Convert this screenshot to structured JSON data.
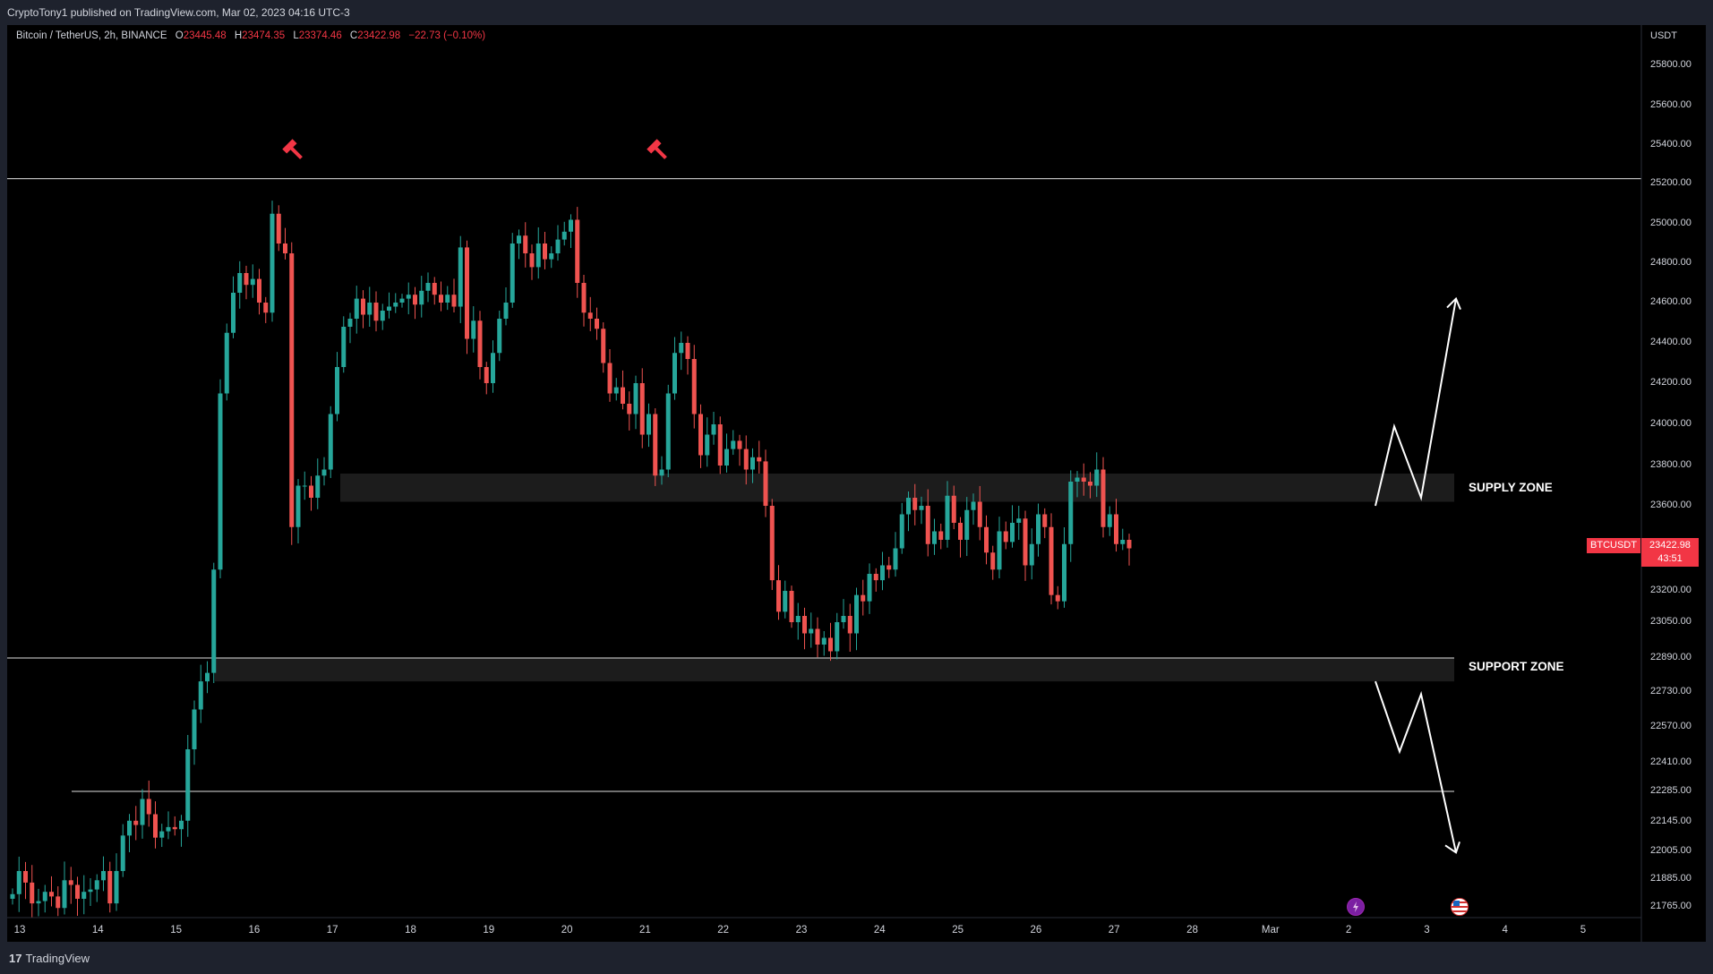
{
  "header": {
    "published": "CryptoTony1 published on TradingView.com, Mar 02, 2023 04:16 UTC-3"
  },
  "legend": {
    "title": "Bitcoin / TetherUS, 2h, BINANCE",
    "open_label": "O",
    "open": "23445.48",
    "high_label": "H",
    "high": "23474.35",
    "low_label": "L",
    "low": "23374.46",
    "close_label": "C",
    "close": "23422.98",
    "change": "−22.73 (−0.10%)"
  },
  "price_axis": {
    "currency": "USDT",
    "ticks": [
      "25800.00",
      "25600.00",
      "25400.00",
      "25200.00",
      "25000.00",
      "24800.00",
      "24600.00",
      "24400.00",
      "24200.00",
      "24000.00",
      "23800.00",
      "23600.00",
      "23200.00",
      "23050.00",
      "22890.00",
      "22730.00",
      "22570.00",
      "22410.00",
      "22285.00",
      "22145.00",
      "22005.00",
      "21885.00",
      "21765.00"
    ]
  },
  "time_axis": {
    "labels": [
      "13",
      "14",
      "15",
      "16",
      "17",
      "18",
      "19",
      "20",
      "21",
      "22",
      "23",
      "24",
      "25",
      "26",
      "27",
      "28",
      "Mar",
      "2",
      "3",
      "4",
      "5"
    ]
  },
  "current_price": {
    "symbol": "BTCUSDT",
    "price": "23422.98",
    "countdown": "43:51"
  },
  "annotations": {
    "supply_zone": "SUPPLY ZONE",
    "support_zone": "SUPPORT ZONE"
  },
  "footer": {
    "brand": "TradingView"
  },
  "colors": {
    "up": "#26a69a",
    "down": "#ef5350",
    "background": "#000000",
    "frame": "#1e222d",
    "zone": "#1c1c1c",
    "badge": "#f23645"
  },
  "icons": {
    "hammer": "hammer-icon",
    "lightning_event": "lightning-event-icon",
    "flag_event": "us-flag-event-icon",
    "logo": "tradingview-logo-icon"
  },
  "chart_data": {
    "type": "candlestick",
    "symbol": "Bitcoin / TetherUS",
    "interval": "2h",
    "exchange": "BINANCE",
    "x_range": [
      "13",
      "5"
    ],
    "y_range": [
      21765,
      25900
    ],
    "horizontal_levels": [
      25225,
      22890,
      22285
    ],
    "zones": [
      {
        "name": "SUPPLY ZONE",
        "from": 23620,
        "to": 23760
      },
      {
        "name": "SUPPORT ZONE",
        "from": 22780,
        "to": 22890
      }
    ],
    "projection_up": [
      23600,
      23990,
      23640,
      24620
    ],
    "projection_down": [
      22780,
      22460,
      22720,
      22000
    ],
    "closes": [
      21820,
      21920,
      21870,
      21780,
      21790,
      21830,
      21810,
      21760,
      21880,
      21860,
      21800,
      21830,
      21840,
      21880,
      21920,
      21780,
      21920,
      22080,
      22150,
      22130,
      22250,
      22180,
      22070,
      22100,
      22120,
      22110,
      22150,
      22470,
      22650,
      22780,
      22820,
      23300,
      24150,
      24450,
      24650,
      24750,
      24690,
      24720,
      24600,
      24550,
      25050,
      24900,
      24850,
      23500,
      23700,
      23700,
      23640,
      23750,
      23780,
      24050,
      24280,
      24480,
      24520,
      24620,
      24540,
      24600,
      24510,
      24560,
      24580,
      24600,
      24620,
      24640,
      24590,
      24660,
      24700,
      24640,
      24600,
      24640,
      24580,
      24880,
      24420,
      24510,
      24280,
      24200,
      24350,
      24520,
      24600,
      24900,
      24940,
      24850,
      24780,
      24900,
      24820,
      24850,
      24920,
      24960,
      25020,
      24700,
      24550,
      24520,
      24470,
      24300,
      24150,
      24180,
      24100,
      24050,
      24200,
      23950,
      24050,
      23750,
      23780,
      24150,
      24350,
      24400,
      24320,
      24050,
      23850,
      23950,
      24000,
      23800,
      23880,
      23920,
      23880,
      23780,
      23840,
      23820,
      23600,
      23250,
      23100,
      23200,
      23050,
      23080,
      23000,
      23020,
      22950,
      22980,
      22920,
      23050,
      23080,
      23000,
      23180,
      23150,
      23280,
      23250,
      23320,
      23300,
      23400,
      23560,
      23640,
      23580,
      23600,
      23420,
      23480,
      23440,
      23650,
      23520,
      23440,
      23580,
      23620,
      23500,
      23380,
      23300,
      23480,
      23430,
      23520,
      23540,
      23320,
      23420,
      23560,
      23500,
      23180,
      23150,
      23420,
      23720,
      23740,
      23720,
      23700,
      23780,
      23500,
      23560,
      23420,
      23440,
      23400
    ]
  }
}
